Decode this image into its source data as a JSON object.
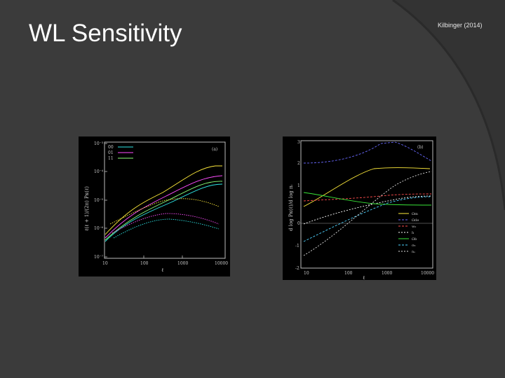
{
  "slide": {
    "title": "WL Sensitivity",
    "credit": "Kilbinger (2014)"
  },
  "figure_left": {
    "panel_label": "(a)",
    "xlabel": "ℓ",
    "ylabel": "ℓ(ℓ + 1)/(2π) Pκ(ℓ)",
    "x_ticks": [
      "10",
      "100",
      "1000",
      "10000"
    ],
    "y_ticks": [
      "10⁻⁷",
      "10⁻⁶",
      "10⁻⁵",
      "10⁻⁴",
      "10⁻³"
    ],
    "legend": [
      "00",
      "01",
      "11"
    ],
    "colors": [
      "#ffeb3b",
      "#ff4dff",
      "#2ee6e6",
      "#8cff7a"
    ]
  },
  "figure_right": {
    "panel_label": "(b)",
    "xlabel": "ℓ",
    "ylabel": "d log Pκ(ℓ)/d log πᵢ",
    "x_ticks": [
      "10",
      "100",
      "1000",
      "10000"
    ],
    "y_ticks": [
      "-2",
      "-1",
      "0",
      "1",
      "2",
      "3"
    ],
    "legend": [
      "Ωm",
      "Ωde",
      "w₀",
      "h",
      "Ωb",
      "σ₈",
      "nₛ"
    ],
    "colors": [
      "#ffeb3b",
      "#6a6aff",
      "#ff4d4d",
      "#ffffff",
      "#39e639",
      "#4dd2ff",
      "#e0e0e0"
    ]
  }
}
